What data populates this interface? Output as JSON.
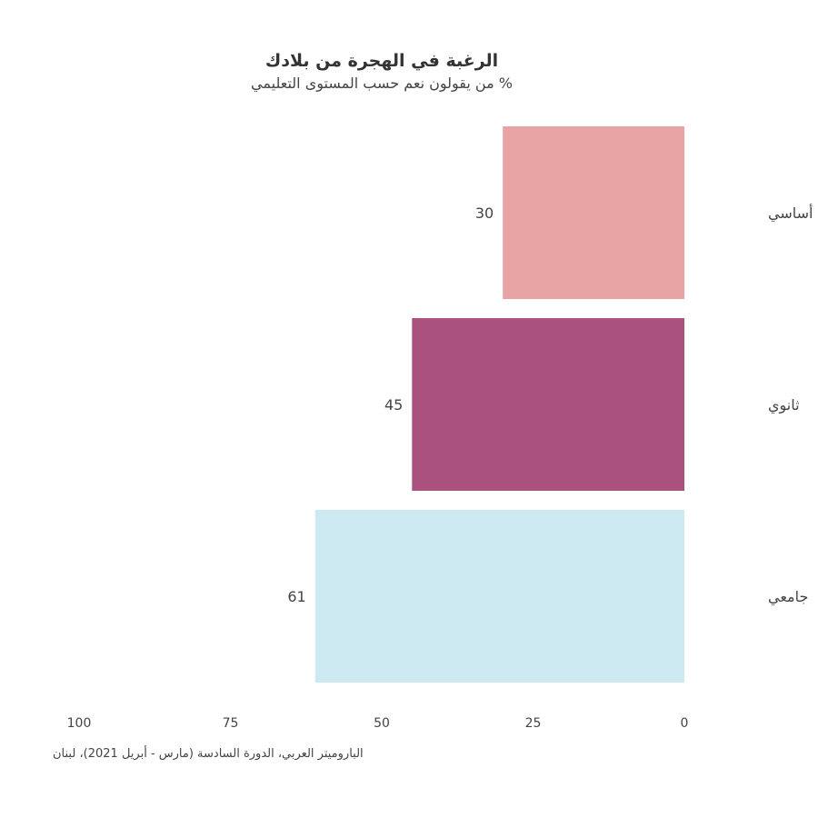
{
  "chart_data": {
    "type": "bar",
    "orientation": "horizontal",
    "x_axis_reversed": true,
    "title": "الرغبة في الهجرة من بلادك",
    "subtitle": "% من يقولون نعم حسب المستوى التعليمي",
    "categories": [
      "أساسي",
      "ثانوي",
      "جامعي"
    ],
    "values": [
      30,
      45,
      61
    ],
    "colors": [
      "#e8a4a5",
      "#ab517d",
      "#cde9f2"
    ],
    "xlim": [
      0,
      100
    ],
    "x_ticks": [
      100,
      75,
      50,
      25,
      0
    ],
    "grid": false,
    "legend": "none"
  },
  "source": "الباروميتر العربي، الدورة السادسة (مارس - أبريل 2021)، لبنان"
}
